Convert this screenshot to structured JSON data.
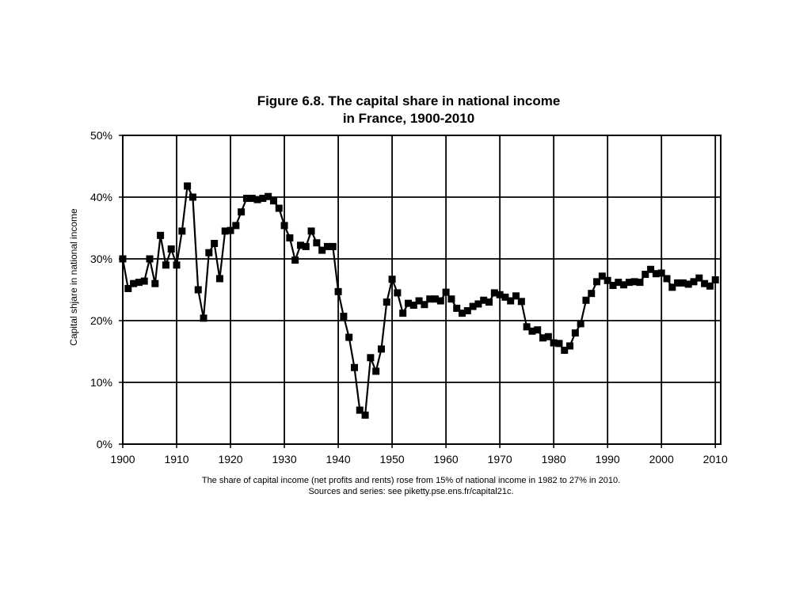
{
  "chart_data": {
    "type": "line",
    "title": "Figure 6.8. The capital share in national income",
    "subtitle": "in France, 1900-2010",
    "ylabel": "Capital shjare in national income",
    "xlabel": "",
    "xlim": [
      1900,
      2011
    ],
    "ylim": [
      0,
      50
    ],
    "grid": true,
    "legend": "none",
    "marker": "square",
    "line_color": "#000000",
    "x_ticks": [
      "1900",
      "1910",
      "1920",
      "1930",
      "1940",
      "1950",
      "1960",
      "1970",
      "1980",
      "1990",
      "2000",
      "2010"
    ],
    "y_ticks": [
      "0%",
      "10%",
      "20%",
      "30%",
      "40%",
      "50%"
    ],
    "series": [
      {
        "x": [
          1900,
          1901,
          1902,
          1903,
          1904,
          1905,
          1906,
          1907,
          1908,
          1909,
          1910,
          1911,
          1912,
          1913,
          1914,
          1915,
          1916,
          1917,
          1918,
          1919,
          1920,
          1921,
          1922,
          1923,
          1924,
          1925,
          1926,
          1927,
          1928,
          1929,
          1930,
          1931,
          1932,
          1933,
          1934,
          1935,
          1936,
          1937,
          1938,
          1939,
          1940,
          1941,
          1942,
          1943,
          1944,
          1945,
          1946,
          1947,
          1948,
          1949,
          1950,
          1951,
          1952,
          1953,
          1954,
          1955,
          1956,
          1957,
          1958,
          1959,
          1960,
          1961,
          1962,
          1963,
          1964,
          1965,
          1966,
          1967,
          1968,
          1969,
          1970,
          1971,
          1972,
          1973,
          1974,
          1975,
          1976,
          1977,
          1978,
          1979,
          1980,
          1981,
          1982,
          1983,
          1984,
          1985,
          1986,
          1987,
          1988,
          1989,
          1990,
          1991,
          1992,
          1993,
          1994,
          1995,
          1996,
          1997,
          1998,
          1999,
          2000,
          2001,
          2002,
          2003,
          2004,
          2005,
          2006,
          2007,
          2008,
          2009,
          2010
        ],
        "y": [
          30.0,
          25.2,
          26.0,
          26.2,
          26.4,
          30.0,
          26.0,
          33.8,
          29.0,
          31.6,
          29.0,
          34.5,
          41.8,
          40.0,
          25.0,
          20.4,
          31.0,
          32.5,
          26.8,
          34.5,
          34.6,
          35.4,
          37.6,
          39.8,
          39.8,
          39.6,
          39.8,
          40.1,
          39.4,
          38.2,
          35.4,
          33.4,
          29.8,
          32.2,
          32.0,
          34.5,
          32.6,
          31.4,
          32.0,
          32.0,
          24.7,
          20.7,
          17.3,
          12.4,
          5.5,
          4.7,
          14.0,
          11.8,
          15.4,
          23.0,
          26.7,
          24.5,
          21.2,
          22.8,
          22.5,
          23.2,
          22.6,
          23.5,
          23.5,
          23.2,
          24.6,
          23.5,
          22.0,
          21.2,
          21.6,
          22.3,
          22.7,
          23.3,
          23.0,
          24.5,
          24.2,
          23.8,
          23.2,
          24.0,
          23.1,
          19.0,
          18.3,
          18.5,
          17.2,
          17.4,
          16.4,
          16.3,
          15.2,
          15.9,
          18.0,
          19.5,
          23.3,
          24.4,
          26.3,
          27.2,
          26.5,
          25.7,
          26.2,
          25.8,
          26.2,
          26.3,
          26.2,
          27.5,
          28.3,
          27.6,
          27.7,
          26.8,
          25.4,
          26.1,
          26.1,
          25.9,
          26.3,
          26.9,
          26.0,
          25.6,
          26.6
        ]
      }
    ],
    "caption_line1": "The share of capital income (net profits and rents) rose from 15% of national income in 1982 to 27% in 2010.",
    "caption_line2": "Sources and series: see piketty.pse.ens.fr/capital21c."
  }
}
